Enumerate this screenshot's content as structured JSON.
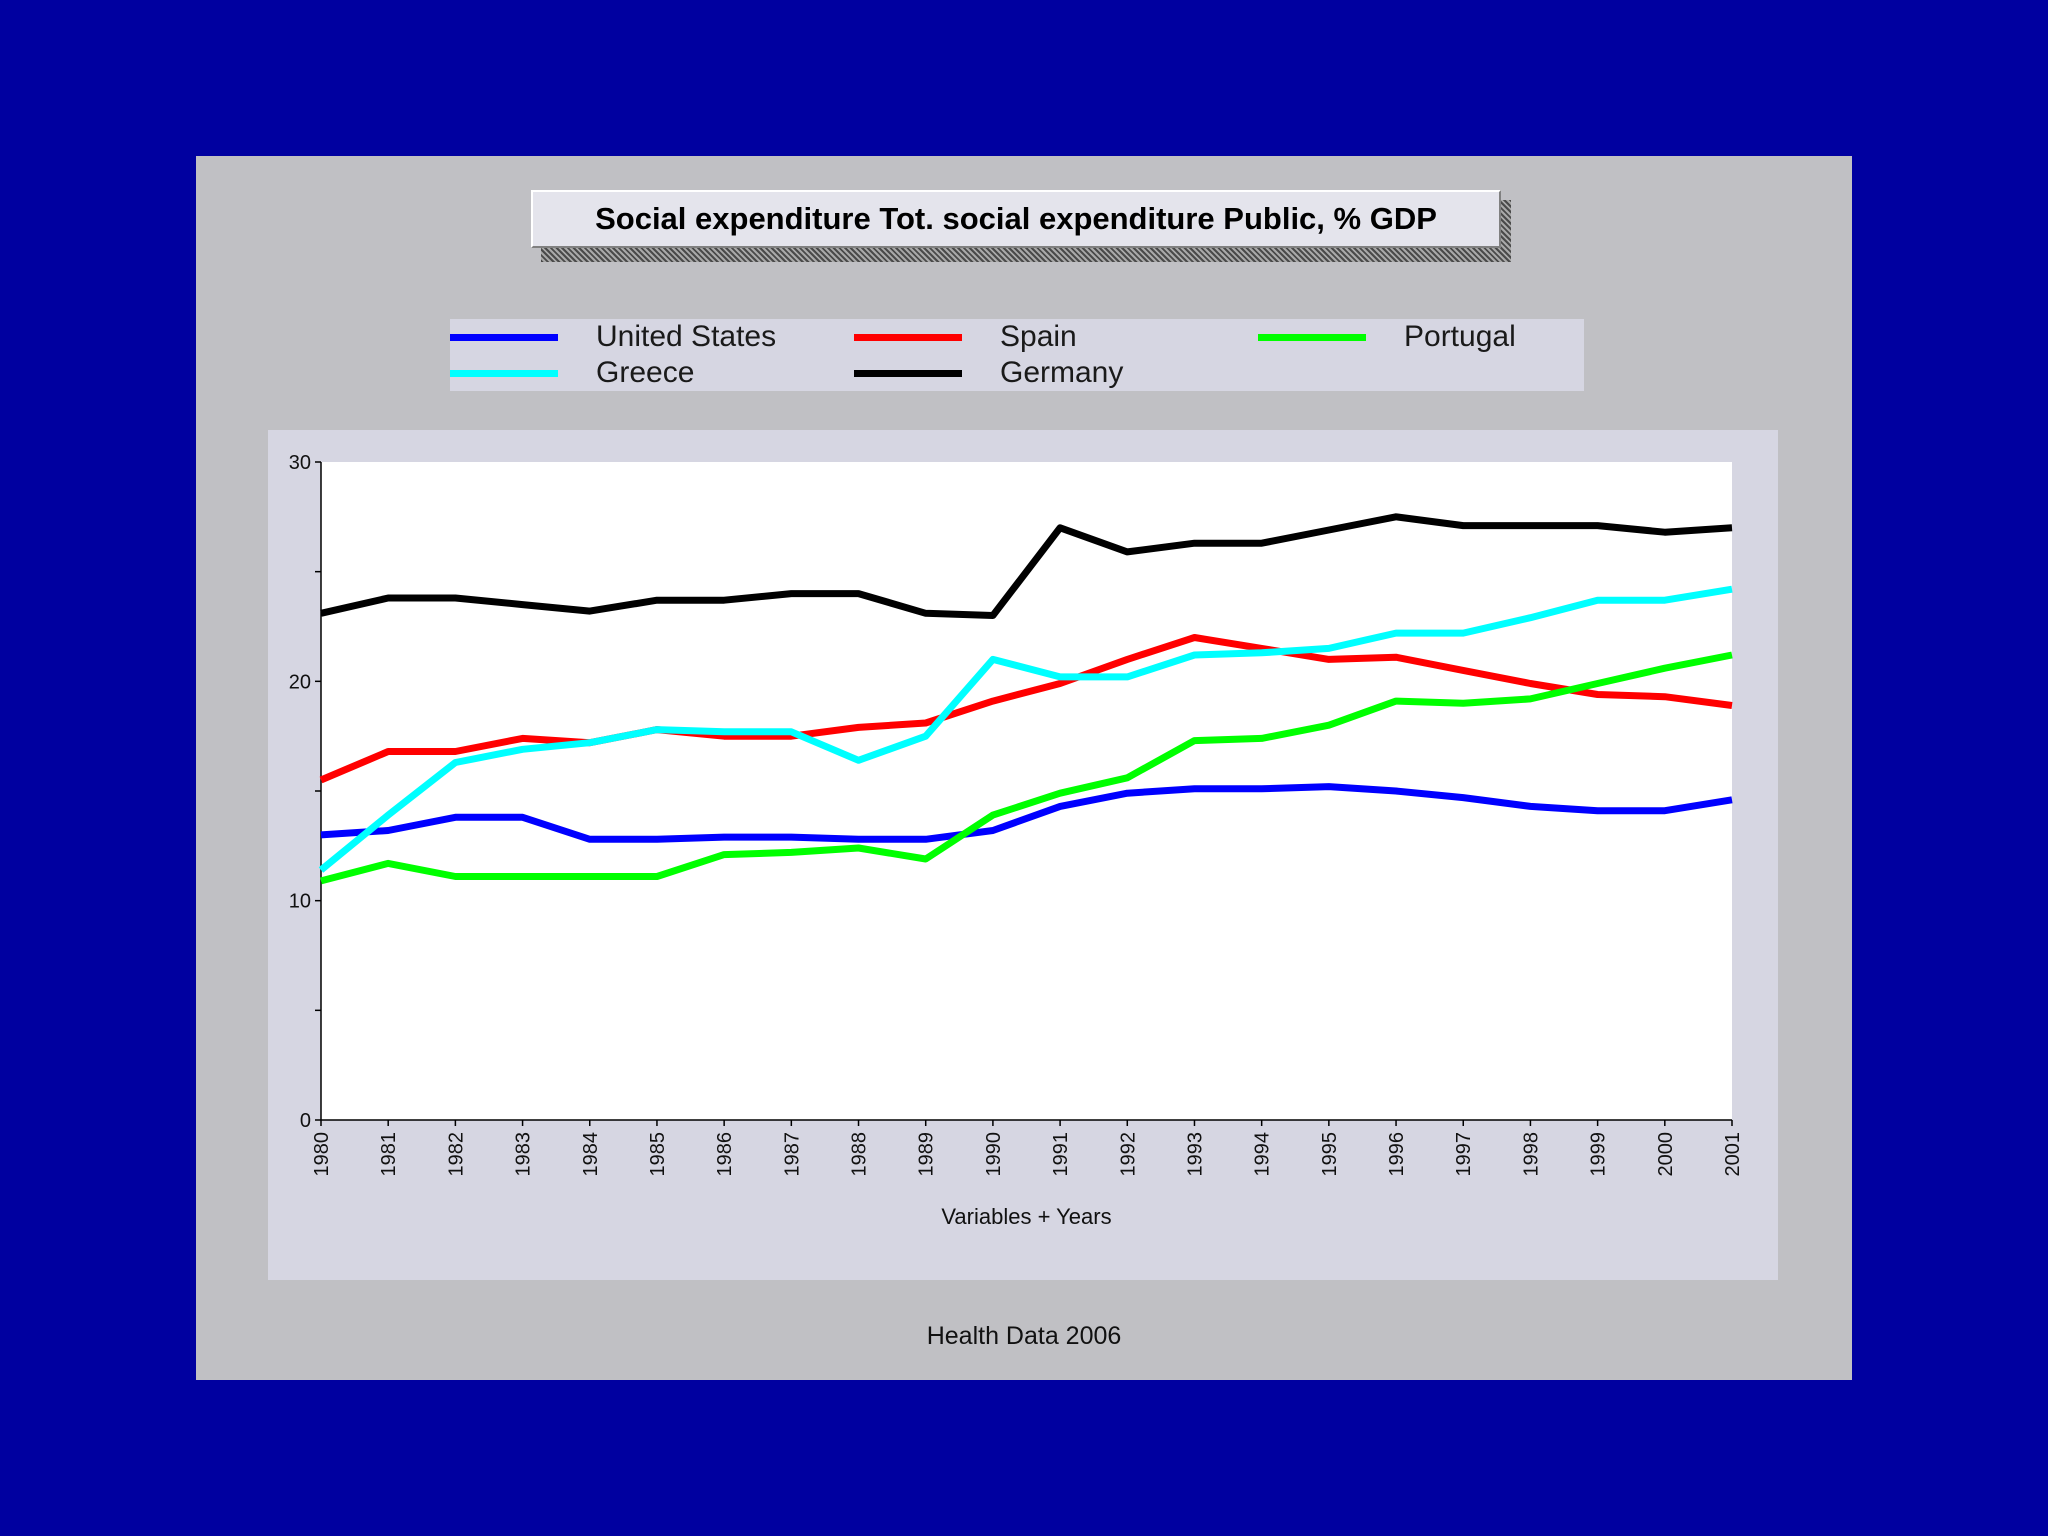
{
  "chart_data": {
    "type": "line",
    "title": "Social expenditure Tot. social expenditure Public, % GDP",
    "xlabel": "Variables + Years",
    "ylabel": "",
    "ylim": [
      0,
      30
    ],
    "yticks": [
      "0",
      "10",
      "20",
      "30"
    ],
    "x": [
      "1980",
      "1981",
      "1982",
      "1983",
      "1984",
      "1985",
      "1986",
      "1987",
      "1988",
      "1989",
      "1990",
      "1991",
      "1992",
      "1993",
      "1994",
      "1995",
      "1996",
      "1997",
      "1998",
      "1999",
      "2000",
      "2001"
    ],
    "grid": false,
    "legend_position": "top",
    "series": [
      {
        "name": "United States",
        "color": "#0000ff",
        "values": [
          13.0,
          13.2,
          13.8,
          13.8,
          12.8,
          12.8,
          12.9,
          12.9,
          12.8,
          12.8,
          13.2,
          14.3,
          14.9,
          15.1,
          15.1,
          15.2,
          15.0,
          14.7,
          14.3,
          14.1,
          14.1,
          14.6
        ]
      },
      {
        "name": "Spain",
        "color": "#ff0000",
        "values": [
          15.5,
          16.8,
          16.8,
          17.4,
          17.2,
          17.8,
          17.5,
          17.5,
          17.9,
          18.1,
          19.1,
          19.9,
          21.0,
          22.0,
          21.5,
          21.0,
          21.1,
          20.5,
          19.9,
          19.4,
          19.3,
          18.9
        ]
      },
      {
        "name": "Portugal",
        "color": "#00ff00",
        "values": [
          10.9,
          11.7,
          11.1,
          11.1,
          11.1,
          11.1,
          12.1,
          12.2,
          12.4,
          11.9,
          13.9,
          14.9,
          15.6,
          17.3,
          17.4,
          18.0,
          19.1,
          19.0,
          19.2,
          19.9,
          20.6,
          21.2
        ]
      },
      {
        "name": "Greece",
        "color": "#00ffff",
        "values": [
          11.4,
          13.9,
          16.3,
          16.9,
          17.2,
          17.8,
          17.7,
          17.7,
          16.4,
          17.5,
          21.0,
          20.2,
          20.2,
          21.2,
          21.3,
          21.5,
          22.2,
          22.2,
          22.9,
          23.7,
          23.7,
          24.2
        ]
      },
      {
        "name": "Germany",
        "color": "#000000",
        "values": [
          23.1,
          23.8,
          23.8,
          23.5,
          23.2,
          23.7,
          23.7,
          24.0,
          24.0,
          23.1,
          23.0,
          27.0,
          25.9,
          26.3,
          26.3,
          26.9,
          27.5,
          27.1,
          27.1,
          27.1,
          26.8,
          27.0
        ]
      }
    ],
    "source": "Health Data 2006"
  }
}
